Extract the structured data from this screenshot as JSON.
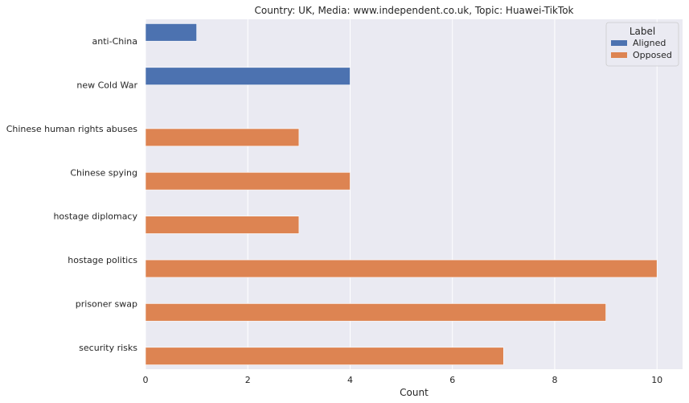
{
  "chart_data": {
    "type": "bar",
    "orientation": "horizontal",
    "title": "Country: UK, Media: www.independent.co.uk, Topic: Huawei-TikTok",
    "xlabel": "Count",
    "ylabel": "",
    "xlim": [
      0,
      10.5
    ],
    "xticks": [
      0,
      2,
      4,
      6,
      8,
      10
    ],
    "grid": true,
    "legend": {
      "title": "Label",
      "placement": "top-right"
    },
    "categories": [
      "anti-China",
      "new Cold War",
      "Chinese human rights abuses",
      "Chinese spying",
      "hostage diplomacy",
      "hostage politics",
      "prisoner swap",
      "security risks"
    ],
    "series": [
      {
        "name": "Aligned",
        "color": "#4c72b0",
        "values": [
          1,
          4,
          null,
          null,
          null,
          null,
          null,
          null
        ]
      },
      {
        "name": "Opposed",
        "color": "#dd8452",
        "values": [
          null,
          null,
          3,
          4,
          3,
          10,
          9,
          7
        ]
      }
    ],
    "colors": {
      "background": "#eaeaf2",
      "grid": "#ffffff"
    }
  }
}
